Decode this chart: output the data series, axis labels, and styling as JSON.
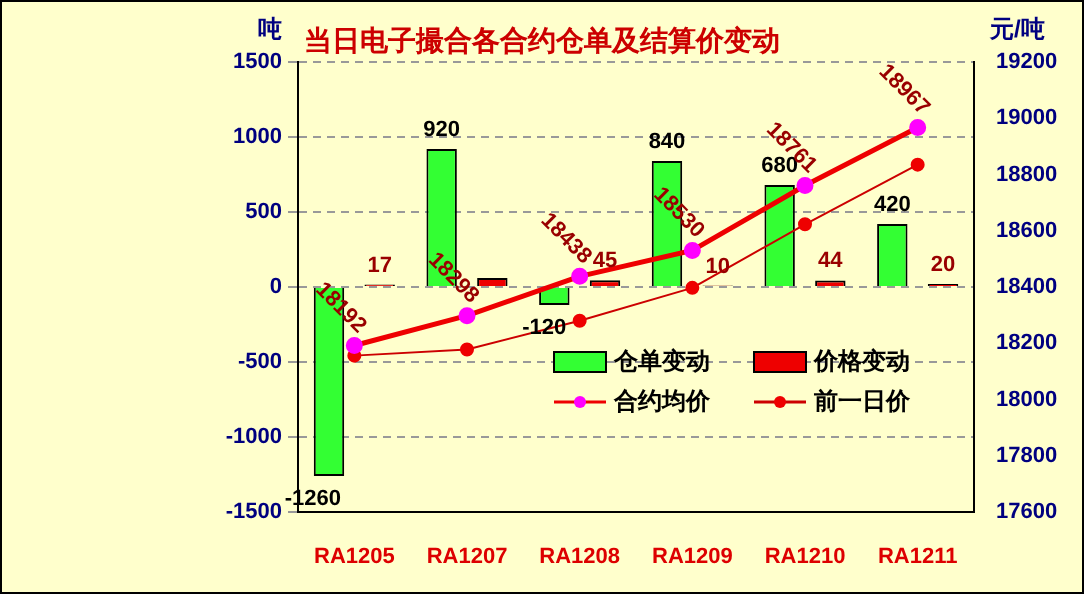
{
  "chart_data": {
    "type": "bar",
    "title": "当日电子撮合各合约仓单及结算价变动",
    "ylabel": "吨",
    "y2label": "元/吨",
    "categories": [
      "RA1205",
      "RA1207",
      "RA1208",
      "RA1209",
      "RA1210",
      "RA1211"
    ],
    "series": [
      {
        "name": "仓单变动",
        "color": "#33ff33",
        "values": [
          -1260,
          920,
          -120,
          840,
          680,
          420
        ],
        "value_labels": [
          "-1260",
          "920",
          "-120",
          "840",
          "680",
          "420"
        ]
      },
      {
        "name": "价格变动",
        "color": "#ee0000",
        "values": [
          17,
          60,
          45,
          10,
          44,
          20
        ],
        "value_labels": [
          "17",
          null,
          "45",
          "10",
          "44",
          "20"
        ]
      },
      {
        "name": "合约均价",
        "type": "line",
        "axis": "y2",
        "color": "#ee0000",
        "marker": "circle",
        "values": [
          18192,
          18298,
          18438,
          18530,
          18761,
          18967
        ],
        "value_labels": [
          "18192",
          "18298",
          "18438",
          "18530",
          "18761",
          "18967"
        ]
      },
      {
        "name": "前一日价",
        "type": "line",
        "axis": "y2",
        "color": "#cc0000",
        "marker": "circle",
        "values": [
          18156,
          18178,
          18280,
          18397,
          18623,
          18835
        ]
      }
    ],
    "ylim": [
      -1500,
      1500
    ],
    "yticks": [
      -1500,
      -1000,
      -500,
      0,
      500,
      1000,
      1500
    ],
    "y2lim": [
      17600,
      19200
    ],
    "y2ticks": [
      17600,
      17800,
      18000,
      18200,
      18400,
      18600,
      18800,
      19000,
      19200
    ],
    "grid": "y",
    "legend": "bottom right"
  }
}
